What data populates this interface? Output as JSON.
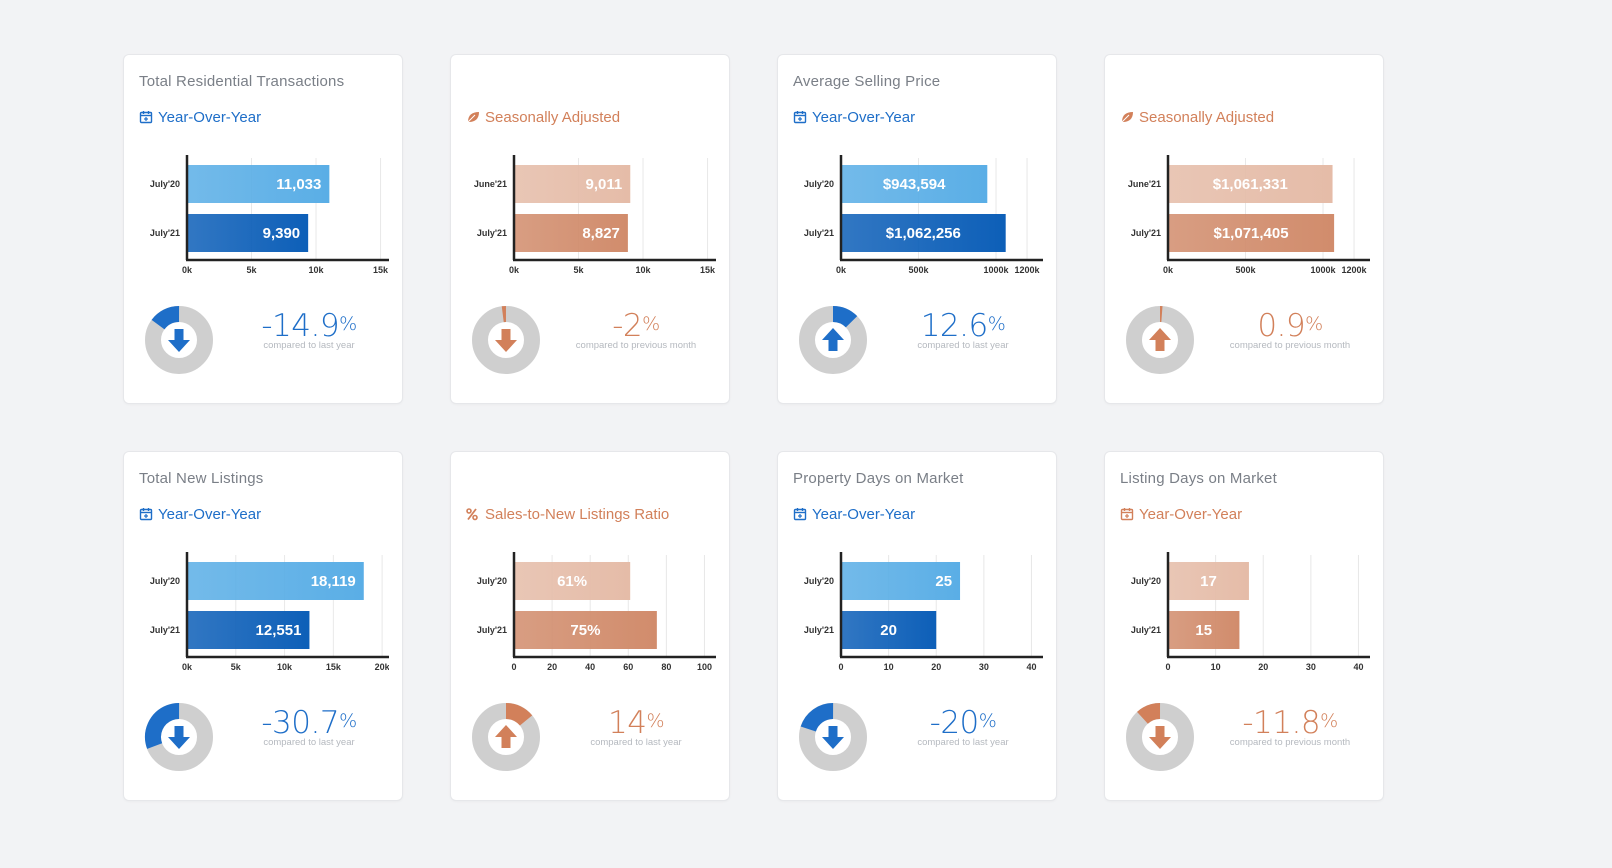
{
  "colors": {
    "blue_light": "#5aaee6",
    "blue_dark": "#0d5fb8",
    "orange_light": "#e5bca8",
    "orange_dark": "#d18c6c",
    "donut_track": "#cfcfcf",
    "blue_accent": "#1e6ec8",
    "orange_accent": "#d2805a"
  },
  "cards": [
    {
      "title": "Total Residential Transactions",
      "subtitle": "Year-Over-Year",
      "subtitle_icon": "calendar-icon",
      "theme": "blue",
      "stat": {
        "value": "-14.9",
        "unit": "%",
        "note": "compared to last year",
        "direction": "down",
        "donut_fraction": 0.149
      },
      "chart_data": {
        "type": "bar",
        "orientation": "horizontal",
        "categories": [
          "July'20",
          "July'21"
        ],
        "values": [
          11033,
          9390
        ],
        "value_labels": [
          "11,033",
          "9,390"
        ],
        "xlim": [
          0,
          15500
        ],
        "ticks": [
          0,
          5000,
          10000,
          15000
        ],
        "tick_labels": [
          "0k",
          "5k",
          "10k",
          "15k"
        ]
      }
    },
    {
      "title": "",
      "subtitle": "Seasonally Adjusted",
      "subtitle_icon": "leaf-icon",
      "theme": "orange",
      "stat": {
        "value": "-2",
        "unit": "%",
        "note": "compared to previous month",
        "direction": "down",
        "donut_fraction": 0.02
      },
      "chart_data": {
        "type": "bar",
        "orientation": "horizontal",
        "categories": [
          "June'21",
          "July'21"
        ],
        "values": [
          9011,
          8827
        ],
        "value_labels": [
          "9,011",
          "8,827"
        ],
        "xlim": [
          0,
          15500
        ],
        "ticks": [
          0,
          5000,
          10000,
          15000
        ],
        "tick_labels": [
          "0k",
          "5k",
          "10k",
          "15k"
        ]
      }
    },
    {
      "title": "Average Selling Price",
      "subtitle": "Year-Over-Year",
      "subtitle_icon": "calendar-icon",
      "theme": "blue",
      "stat": {
        "value": "12.6",
        "unit": "%",
        "note": "compared to last year",
        "direction": "up",
        "donut_fraction": 0.126
      },
      "chart_data": {
        "type": "bar",
        "orientation": "horizontal",
        "categories": [
          "July'20",
          "July'21"
        ],
        "values": [
          943594,
          1062256
        ],
        "value_labels": [
          "$943,594",
          "$1,062,256"
        ],
        "xlim": [
          0,
          1290000
        ],
        "ticks": [
          0,
          500000,
          1000000,
          1200000
        ],
        "tick_labels": [
          "0k",
          "500k",
          "1000k",
          "1200k"
        ]
      }
    },
    {
      "title": "",
      "subtitle": "Seasonally Adjusted",
      "subtitle_icon": "leaf-icon",
      "theme": "orange",
      "stat": {
        "value": "0.9",
        "unit": "%",
        "note": "compared to previous month",
        "direction": "up",
        "donut_fraction": 0.009
      },
      "chart_data": {
        "type": "bar",
        "orientation": "horizontal",
        "categories": [
          "June'21",
          "July'21"
        ],
        "values": [
          1061331,
          1071405
        ],
        "value_labels": [
          "$1,061,331",
          "$1,071,405"
        ],
        "xlim": [
          0,
          1290000
        ],
        "ticks": [
          0,
          500000,
          1000000,
          1200000
        ],
        "tick_labels": [
          "0k",
          "500k",
          "1000k",
          "1200k"
        ]
      }
    },
    {
      "title": "Total New Listings",
      "subtitle": "Year-Over-Year",
      "subtitle_icon": "calendar-icon",
      "theme": "blue",
      "stat": {
        "value": "-30.7",
        "unit": "%",
        "note": "compared to last year",
        "direction": "down",
        "donut_fraction": 0.307
      },
      "chart_data": {
        "type": "bar",
        "orientation": "horizontal",
        "categories": [
          "July'20",
          "July'21"
        ],
        "values": [
          18119,
          12551
        ],
        "value_labels": [
          "18,119",
          "12,551"
        ],
        "xlim": [
          0,
          20500
        ],
        "ticks": [
          0,
          5000,
          10000,
          15000,
          20000
        ],
        "tick_labels": [
          "0k",
          "5k",
          "10k",
          "15k",
          "20k"
        ]
      }
    },
    {
      "title": "",
      "subtitle": "Sales-to-New Listings Ratio",
      "subtitle_icon": "percent-icon",
      "theme": "orange",
      "stat": {
        "value": "14",
        "unit": "%",
        "note": "compared to last year",
        "direction": "up",
        "donut_fraction": 0.14
      },
      "chart_data": {
        "type": "bar",
        "orientation": "horizontal",
        "categories": [
          "July'20",
          "July'21"
        ],
        "values": [
          61,
          75
        ],
        "value_labels": [
          "61%",
          "75%"
        ],
        "xlim": [
          0,
          105
        ],
        "ticks": [
          0,
          20,
          40,
          60,
          80,
          100
        ],
        "tick_labels": [
          "0",
          "20",
          "40",
          "60",
          "80",
          "100"
        ]
      }
    },
    {
      "title": "Property Days on Market",
      "subtitle": "Year-Over-Year",
      "subtitle_icon": "calendar-icon",
      "theme": "blue",
      "stat": {
        "value": "-20",
        "unit": "%",
        "note": "compared to last year",
        "direction": "down",
        "donut_fraction": 0.2
      },
      "chart_data": {
        "type": "bar",
        "orientation": "horizontal",
        "categories": [
          "July'20",
          "July'21"
        ],
        "values": [
          25,
          20
        ],
        "value_labels": [
          "25",
          "20"
        ],
        "xlim": [
          0,
          42
        ],
        "ticks": [
          0,
          10,
          20,
          30,
          40
        ],
        "tick_labels": [
          "0",
          "10",
          "20",
          "30",
          "40"
        ]
      }
    },
    {
      "title": "Listing Days on Market",
      "subtitle": "Year-Over-Year",
      "subtitle_icon": "calendar-icon",
      "theme": "orange",
      "stat": {
        "value": "-11.8",
        "unit": "%",
        "note": "compared to previous month",
        "direction": "down",
        "donut_fraction": 0.118
      },
      "chart_data": {
        "type": "bar",
        "orientation": "horizontal",
        "categories": [
          "July'20",
          "July'21"
        ],
        "values": [
          17,
          15
        ],
        "value_labels": [
          "17",
          "15"
        ],
        "xlim": [
          0,
          42
        ],
        "ticks": [
          0,
          10,
          20,
          30,
          40
        ],
        "tick_labels": [
          "0",
          "10",
          "20",
          "30",
          "40"
        ]
      }
    }
  ]
}
